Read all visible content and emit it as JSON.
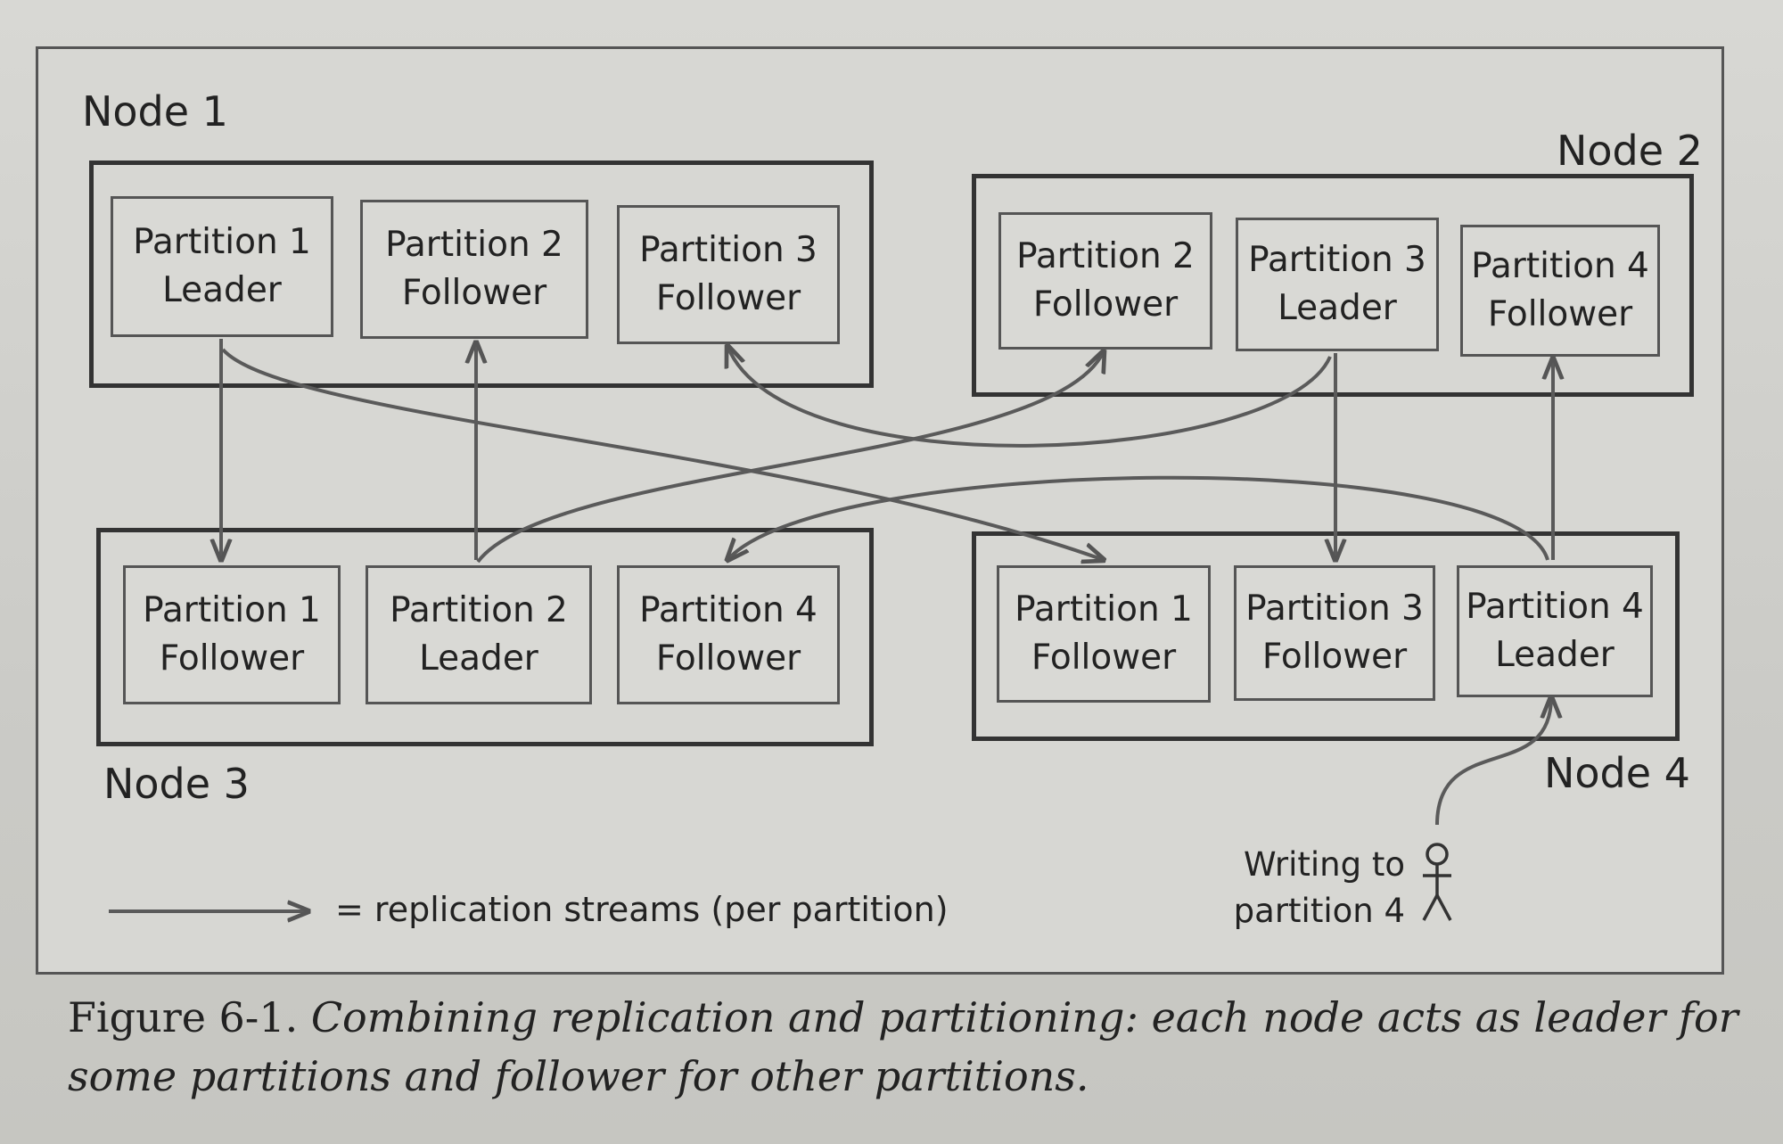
{
  "nodes": {
    "node1": {
      "label": "Node 1",
      "partitions": [
        {
          "name": "Partition 1",
          "role": "Leader"
        },
        {
          "name": "Partition 2",
          "role": "Follower"
        },
        {
          "name": "Partition 3",
          "role": "Follower"
        }
      ]
    },
    "node2": {
      "label": "Node 2",
      "partitions": [
        {
          "name": "Partition 2",
          "role": "Follower"
        },
        {
          "name": "Partition 3",
          "role": "Leader"
        },
        {
          "name": "Partition 4",
          "role": "Follower"
        }
      ]
    },
    "node3": {
      "label": "Node 3",
      "partitions": [
        {
          "name": "Partition 1",
          "role": "Follower"
        },
        {
          "name": "Partition 2",
          "role": "Leader"
        },
        {
          "name": "Partition 4",
          "role": "Follower"
        }
      ]
    },
    "node4": {
      "label": "Node 4",
      "partitions": [
        {
          "name": "Partition 1",
          "role": "Follower"
        },
        {
          "name": "Partition 3",
          "role": "Follower"
        },
        {
          "name": "Partition 4",
          "role": "Leader"
        }
      ]
    }
  },
  "legend": {
    "text": "= replication streams (per partition)"
  },
  "writer": {
    "line1": "Writing to",
    "line2": "partition 4",
    "icon": "person-icon"
  },
  "caption": {
    "label": "Figure 6-1.",
    "text": "Combining replication and partitioning: each node acts as leader for some partitions and follower for other partitions."
  },
  "colors": {
    "stroke": "#555555",
    "box_border": "#333333",
    "background": "#d7d7d3"
  }
}
